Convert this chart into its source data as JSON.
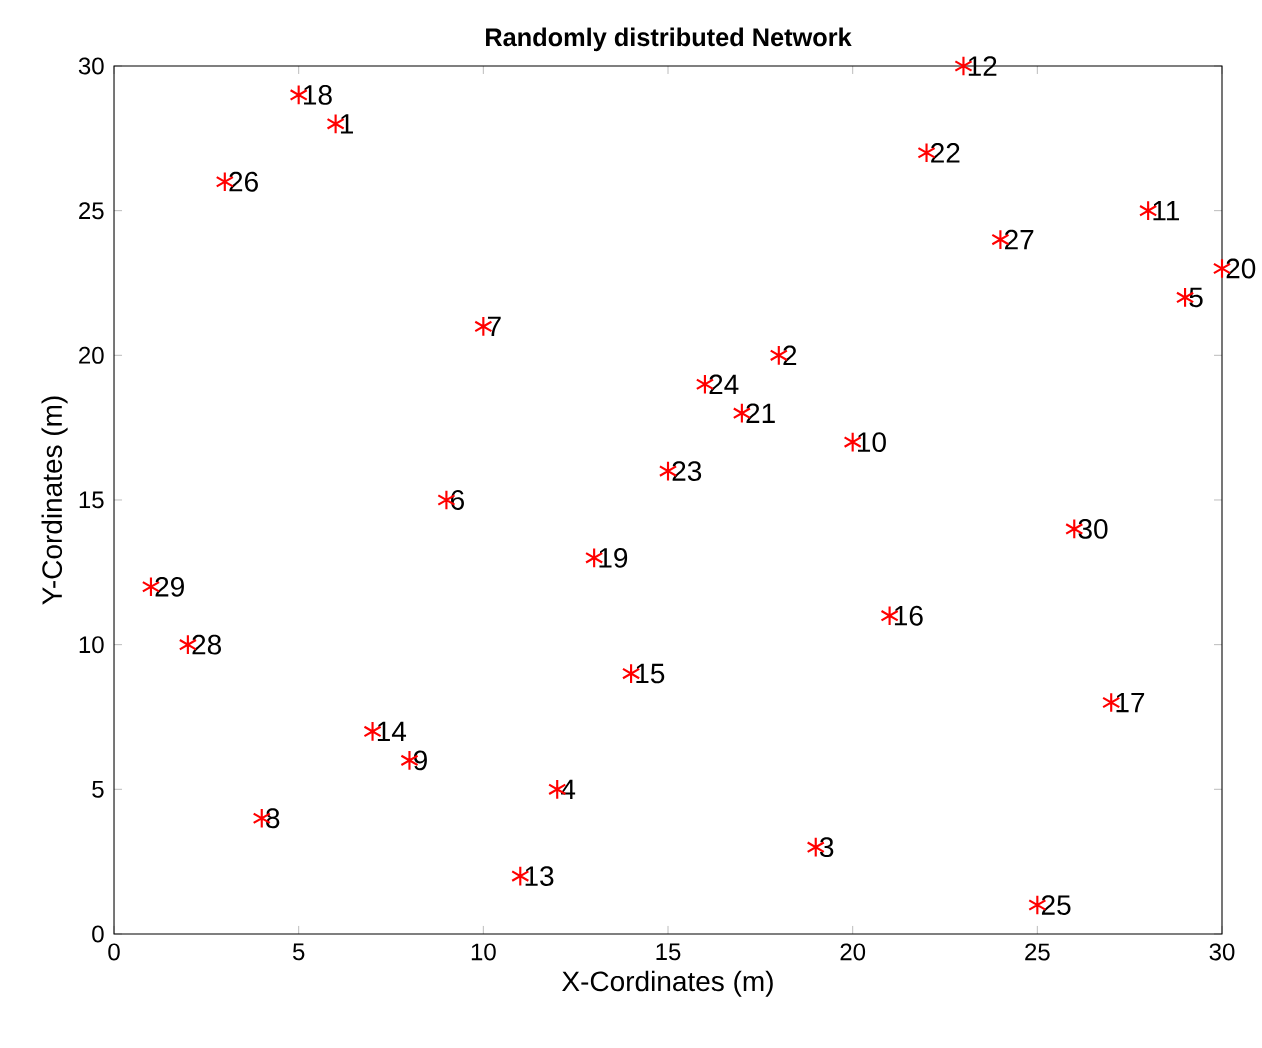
{
  "chart_data": {
    "type": "scatter",
    "title": "Randomly distributed Network",
    "xlabel": "X-Cordinates (m)",
    "ylabel": "Y-Cordinates (m)",
    "xlim": [
      0,
      30
    ],
    "ylim": [
      0,
      30
    ],
    "xticks": [
      0,
      5,
      10,
      15,
      20,
      25,
      30
    ],
    "yticks": [
      0,
      5,
      10,
      15,
      20,
      25,
      30
    ],
    "grid": false,
    "marker": "cross",
    "series": [
      {
        "color": "#ff0000",
        "x": [
          6,
          18,
          19,
          12,
          29,
          9,
          10,
          4,
          8,
          20,
          28,
          23,
          11,
          7,
          14,
          21,
          27,
          5,
          13,
          30,
          17,
          22,
          15,
          16,
          25,
          3,
          24,
          2,
          1,
          26
        ],
        "values": [
          28,
          20,
          3,
          5,
          22,
          15,
          21,
          4,
          6,
          17,
          25,
          30,
          2,
          7,
          9,
          11,
          8,
          29,
          13,
          23,
          18,
          27,
          16,
          19,
          1,
          26,
          24,
          10,
          12,
          14
        ]
      }
    ],
    "annotations": [
      {
        "text": "1",
        "x": 6,
        "y": 28
      },
      {
        "text": "2",
        "x": 18,
        "y": 20
      },
      {
        "text": "3",
        "x": 19,
        "y": 3
      },
      {
        "text": "4",
        "x": 12,
        "y": 5
      },
      {
        "text": "5",
        "x": 29,
        "y": 22
      },
      {
        "text": "6",
        "x": 9,
        "y": 15
      },
      {
        "text": "7",
        "x": 10,
        "y": 21
      },
      {
        "text": "8",
        "x": 4,
        "y": 4
      },
      {
        "text": "9",
        "x": 8,
        "y": 6
      },
      {
        "text": "10",
        "x": 20,
        "y": 17
      },
      {
        "text": "11",
        "x": 28,
        "y": 25
      },
      {
        "text": "12",
        "x": 23,
        "y": 30
      },
      {
        "text": "13",
        "x": 11,
        "y": 2
      },
      {
        "text": "14",
        "x": 7,
        "y": 7
      },
      {
        "text": "15",
        "x": 14,
        "y": 9
      },
      {
        "text": "16",
        "x": 21,
        "y": 11
      },
      {
        "text": "17",
        "x": 27,
        "y": 8
      },
      {
        "text": "18",
        "x": 5,
        "y": 29
      },
      {
        "text": "19",
        "x": 13,
        "y": 13
      },
      {
        "text": "20",
        "x": 30,
        "y": 23
      },
      {
        "text": "21",
        "x": 17,
        "y": 18
      },
      {
        "text": "22",
        "x": 22,
        "y": 27
      },
      {
        "text": "23",
        "x": 15,
        "y": 16
      },
      {
        "text": "24",
        "x": 16,
        "y": 19
      },
      {
        "text": "25",
        "x": 25,
        "y": 1
      },
      {
        "text": "26",
        "x": 3,
        "y": 26
      },
      {
        "text": "27",
        "x": 24,
        "y": 24
      },
      {
        "text": "28",
        "x": 2,
        "y": 10
      },
      {
        "text": "29",
        "x": 1,
        "y": 12
      },
      {
        "text": "30",
        "x": 26,
        "y": 14
      }
    ]
  }
}
